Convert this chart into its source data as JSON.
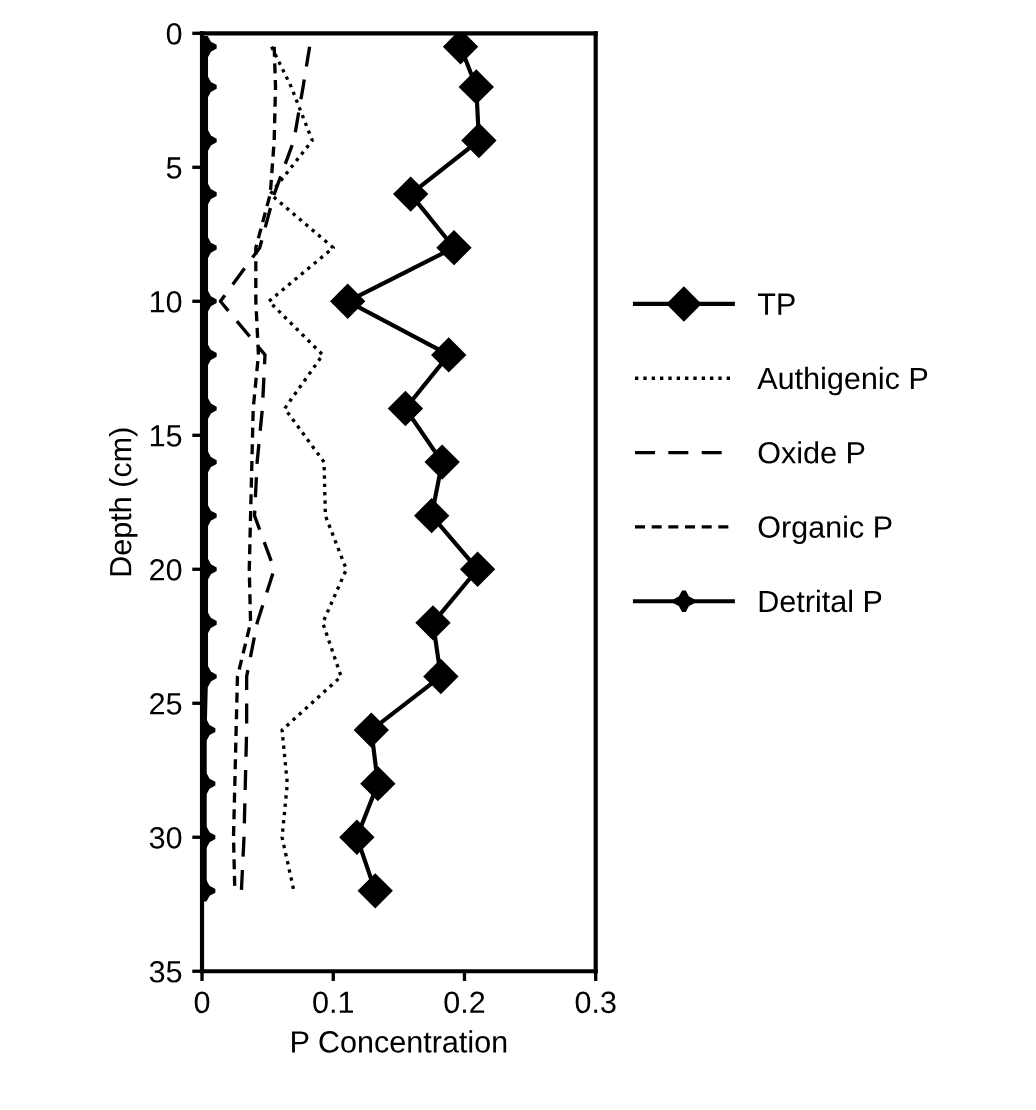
{
  "chart_data": {
    "type": "line",
    "xlabel": "P Concentration",
    "ylabel": "Depth (cm)",
    "xlim": [
      0,
      0.3
    ],
    "xticks": [
      0,
      0.1,
      0.2,
      0.3
    ],
    "ylim": [
      35,
      0
    ],
    "yticks": [
      0,
      5,
      10,
      15,
      20,
      25,
      30,
      35
    ],
    "grid": false,
    "legend": "right",
    "series": [
      {
        "name": "TP",
        "color": "#000000",
        "marker": "diamond",
        "line_style": "solid",
        "values": [
          0.5,
          2,
          4,
          6,
          8,
          10,
          12,
          14,
          16,
          18,
          20,
          22,
          24,
          26,
          28,
          30,
          32
        ],
        "x": [
          0.197,
          0.209,
          0.211,
          0.159,
          0.192,
          0.111,
          0.188,
          0.155,
          0.183,
          0.175,
          0.21,
          0.176,
          0.182,
          0.129,
          0.134,
          0.118,
          0.132
        ]
      },
      {
        "name": "Authigenic P",
        "color": "#000000",
        "marker": "none",
        "line_style": "dotted",
        "values": [
          0.5,
          2,
          4,
          6,
          8,
          10,
          12,
          14,
          16,
          18,
          20,
          22,
          24,
          26,
          28,
          30,
          32
        ],
        "x": [
          0.053,
          0.068,
          0.084,
          0.052,
          0.1,
          0.051,
          0.092,
          0.063,
          0.093,
          0.094,
          0.11,
          0.092,
          0.106,
          0.061,
          0.065,
          0.061,
          0.07
        ]
      },
      {
        "name": "Oxide P",
        "color": "#000000",
        "marker": "none",
        "line_style": "dashed",
        "values": [
          0.5,
          2,
          4,
          6,
          8,
          10,
          12,
          14,
          16,
          18,
          20,
          22,
          24,
          26,
          28,
          30,
          32
        ],
        "x": [
          0.082,
          0.077,
          0.07,
          0.055,
          0.044,
          0.014,
          0.048,
          0.046,
          0.042,
          0.04,
          0.055,
          0.042,
          0.034,
          0.034,
          0.033,
          0.032,
          0.03
        ]
      },
      {
        "name": "Organic P",
        "color": "#000000",
        "marker": "none",
        "line_style": "densely dashed",
        "values": [
          0.5,
          2,
          4,
          6,
          8,
          10,
          12,
          14,
          16,
          18,
          20,
          22,
          24,
          26,
          28,
          30,
          32
        ],
        "x": [
          0.055,
          0.056,
          0.055,
          0.052,
          0.041,
          0.041,
          0.043,
          0.039,
          0.038,
          0.037,
          0.036,
          0.037,
          0.027,
          0.026,
          0.025,
          0.024,
          0.025
        ]
      },
      {
        "name": "Detrital P",
        "color": "#000000",
        "marker": "star",
        "line_style": "solid",
        "values": [
          0.5,
          2,
          4,
          6,
          8,
          10,
          12,
          14,
          16,
          18,
          20,
          22,
          24,
          26,
          28,
          30,
          32
        ],
        "x": [
          0.003,
          0.003,
          0.003,
          0.003,
          0.003,
          0.003,
          0.003,
          0.003,
          0.003,
          0.003,
          0.003,
          0.003,
          0.003,
          0.002,
          0.002,
          0.002,
          0.002
        ]
      }
    ]
  }
}
